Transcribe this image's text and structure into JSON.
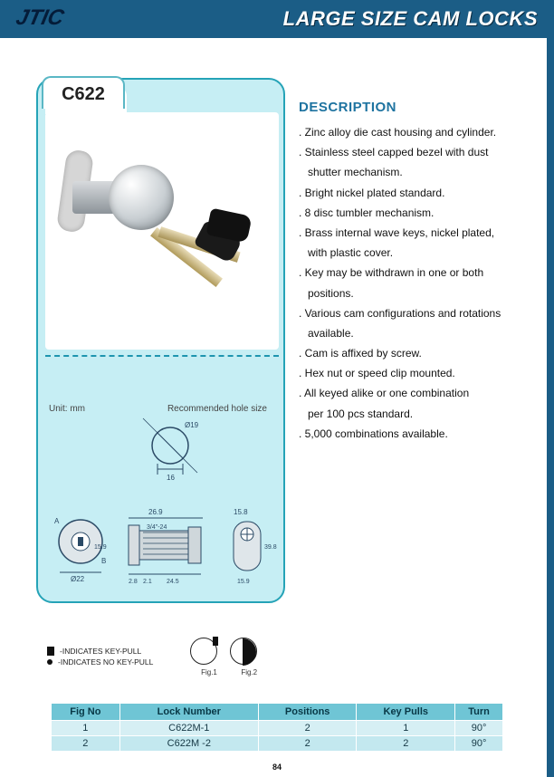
{
  "header": {
    "title": "LARGE SIZE CAM LOCKS",
    "logo_text": "JTIC"
  },
  "product": {
    "code": "C622",
    "unit_label": "Unit: mm",
    "hole_label": "Recommended hole size",
    "diagrams": {
      "hole": {
        "diameter_label": "Ø19",
        "width_label": "16"
      },
      "front": {
        "outer_dia": "Ø22",
        "height": "15.9",
        "angle_a": "A",
        "angle_b": "B"
      },
      "side": {
        "length": "26.9",
        "thread": "3/4\"-24",
        "t1": "2.8",
        "t2": "2.1",
        "t3": "24.5"
      },
      "cam": {
        "w": "15.8",
        "h": "39.8",
        "inner_w": "15.9"
      }
    }
  },
  "description": {
    "title": "DESCRIPTION",
    "items": [
      [
        "Zinc alloy die cast housing and cylinder."
      ],
      [
        "Stainless steel capped bezel with dust",
        "shutter mechanism."
      ],
      [
        "Bright nickel plated standard."
      ],
      [
        "8 disc tumbler mechanism."
      ],
      [
        "Brass internal wave keys, nickel plated,",
        "with plastic cover."
      ],
      [
        "Key may be withdrawn in one or both",
        "positions."
      ],
      [
        "Various cam configurations and rotations",
        "available."
      ],
      [
        "Cam is affixed by screw."
      ],
      [
        "Hex nut or speed clip mounted."
      ],
      [
        "All keyed alike or one combination",
        "per 100 pcs standard."
      ],
      [
        "5,000 combinations available."
      ]
    ]
  },
  "legend": {
    "key_pull": "-INDICATES KEY-PULL",
    "no_key_pull": "-INDICATES NO KEY-PULL",
    "fig1": "Fig.1",
    "fig2": "Fig.2"
  },
  "table": {
    "columns": [
      "Fig No",
      "Lock Number",
      "Positions",
      "Key Pulls",
      "Turn"
    ],
    "rows": [
      [
        "1",
        "C622M-1",
        "2",
        "1",
        "90°"
      ],
      [
        "2",
        "C622M -2",
        "2",
        "2",
        "90°"
      ]
    ],
    "header_bg": "#6fc5d5",
    "row_bg": "#d6eff4",
    "row_alt_bg": "#c3e8ef"
  },
  "page_number": "84",
  "colors": {
    "header_bar": "#1b5d86",
    "panel_border": "#25a3b7",
    "panel_bg": "#c6eef4",
    "desc_title": "#1e73a0"
  }
}
